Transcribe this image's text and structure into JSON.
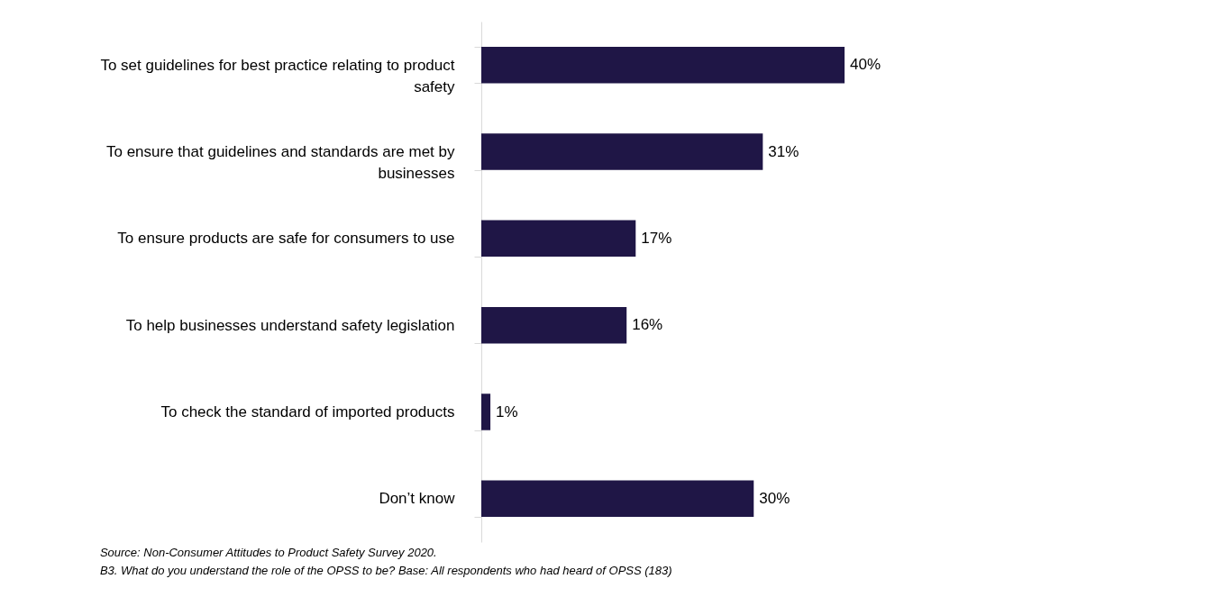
{
  "chart_data": {
    "type": "bar",
    "orientation": "horizontal",
    "categories": [
      "To set guidelines for best practice relating to product safety",
      "To ensure that guidelines and standards are met by businesses",
      "To ensure products are safe for consumers to use",
      "To help businesses understand safety legislation",
      "To check the standard of imported products",
      "Don’t know"
    ],
    "values": [
      40,
      31,
      17,
      16,
      1,
      30
    ],
    "color": "#1f1646",
    "value_labels": [
      "40%",
      "31%",
      "17%",
      "16%",
      "1%",
      "30%"
    ],
    "grid": false,
    "annotations": [
      "Source: Non-Consumer Attitudes to Product Safety Survey 2020.",
      "B3. What  do you understand the role of the OPSS to be? Base: All respondents who  had heard of OPSS (183)"
    ]
  }
}
